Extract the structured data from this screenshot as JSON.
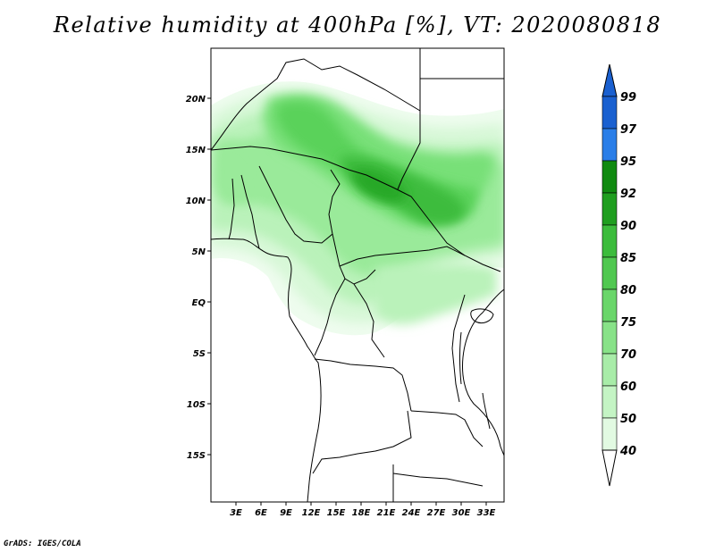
{
  "title": "Relative humidity at 400hPa [%], VT: 2020080818",
  "credit": "GrADS: IGES/COLA",
  "lat_labels": [
    "20N",
    "15N",
    "10N",
    "5N",
    "EQ",
    "5S",
    "10S",
    "15S"
  ],
  "lon_labels": [
    "3E",
    "6E",
    "9E",
    "12E",
    "15E",
    "18E",
    "21E",
    "24E",
    "27E",
    "30E",
    "33E"
  ],
  "colorbar": {
    "labels": [
      "99",
      "97",
      "95",
      "92",
      "90",
      "85",
      "80",
      "75",
      "70",
      "60",
      "50",
      "40"
    ],
    "colors": [
      "#1a60d0",
      "#2a7ee8",
      "#4ca6f0",
      "#108a10",
      "#28a828",
      "#3cbc3c",
      "#5ad25a",
      "#78e078",
      "#9aea9a",
      "#baf2ba",
      "#d8f8d8",
      "#eefcee"
    ]
  },
  "map": {
    "field": "relative humidity 400hPa",
    "lat_range": [
      "20S",
      "25N"
    ],
    "lon_range": [
      "0E",
      "35E"
    ]
  }
}
